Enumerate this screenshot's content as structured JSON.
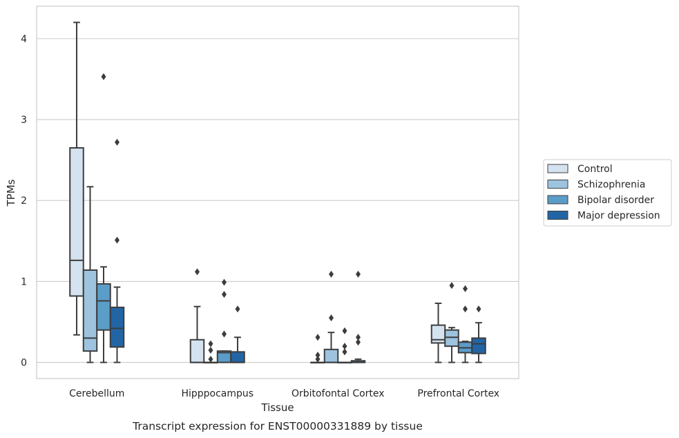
{
  "chart_data": {
    "type": "box",
    "title": "Transcript expression for ENST00000331889 by tissue",
    "xlabel": "Tissue",
    "ylabel": "TPMs",
    "ylim": [
      -0.2,
      4.4
    ],
    "yticks": [
      0,
      1,
      2,
      3,
      4
    ],
    "grid": "horizontal",
    "legend_position": "right",
    "categories": [
      "Cerebellum",
      "Hipppocampus",
      "Orbitofontal Cortex",
      "Prefrontal Cortex"
    ],
    "series": [
      {
        "name": "Control",
        "color": "#d5e2f0",
        "boxes": [
          {
            "min": 0.34,
            "q1": 0.82,
            "median": 1.26,
            "q3": 2.65,
            "max": 4.2,
            "outliers": []
          },
          {
            "min": 0.0,
            "q1": 0.0,
            "median": 0.0,
            "q3": 0.28,
            "max": 0.69,
            "outliers": [
              1.12
            ]
          },
          {
            "min": 0.0,
            "q1": 0.0,
            "median": 0.0,
            "q3": 0.0,
            "max": 0.0,
            "outliers": [
              0.04,
              0.09,
              0.31
            ]
          },
          {
            "min": 0.0,
            "q1": 0.24,
            "median": 0.28,
            "q3": 0.46,
            "max": 0.73,
            "outliers": []
          }
        ]
      },
      {
        "name": "Schizophrenia",
        "color": "#9dc3df",
        "boxes": [
          {
            "min": 0.0,
            "q1": 0.14,
            "median": 0.3,
            "q3": 1.14,
            "max": 2.17,
            "outliers": []
          },
          {
            "min": 0.0,
            "q1": 0.0,
            "median": 0.0,
            "q3": 0.0,
            "max": 0.0,
            "outliers": [
              0.04,
              0.15,
              0.23
            ]
          },
          {
            "min": 0.0,
            "q1": 0.0,
            "median": 0.0,
            "q3": 0.16,
            "max": 0.37,
            "outliers": [
              0.55,
              1.09
            ]
          },
          {
            "min": 0.0,
            "q1": 0.2,
            "median": 0.31,
            "q3": 0.4,
            "max": 0.43,
            "outliers": [
              0.95
            ]
          }
        ]
      },
      {
        "name": "Bipolar disorder",
        "color": "#5b9dc9",
        "boxes": [
          {
            "min": 0.0,
            "q1": 0.4,
            "median": 0.76,
            "q3": 0.97,
            "max": 1.18,
            "outliers": [
              3.53
            ]
          },
          {
            "min": 0.0,
            "q1": 0.0,
            "median": 0.12,
            "q3": 0.14,
            "max": 0.14,
            "outliers": [
              0.35,
              0.84,
              0.99
            ]
          },
          {
            "min": 0.0,
            "q1": 0.0,
            "median": 0.0,
            "q3": 0.0,
            "max": 0.0,
            "outliers": [
              0.13,
              0.2,
              0.39
            ]
          },
          {
            "min": 0.0,
            "q1": 0.12,
            "median": 0.18,
            "q3": 0.25,
            "max": 0.26,
            "outliers": [
              0.66,
              0.91
            ]
          }
        ]
      },
      {
        "name": "Major depression",
        "color": "#2265a5",
        "boxes": [
          {
            "min": 0.0,
            "q1": 0.19,
            "median": 0.42,
            "q3": 0.68,
            "max": 0.93,
            "outliers": [
              1.51,
              2.72
            ]
          },
          {
            "min": 0.0,
            "q1": 0.0,
            "median": 0.0,
            "q3": 0.13,
            "max": 0.31,
            "outliers": [
              0.66
            ]
          },
          {
            "min": 0.0,
            "q1": 0.0,
            "median": 0.0,
            "q3": 0.02,
            "max": 0.04,
            "outliers": [
              0.25,
              0.31,
              1.09
            ]
          },
          {
            "min": 0.0,
            "q1": 0.11,
            "median": 0.23,
            "q3": 0.3,
            "max": 0.49,
            "outliers": [
              0.66
            ]
          }
        ]
      }
    ]
  }
}
